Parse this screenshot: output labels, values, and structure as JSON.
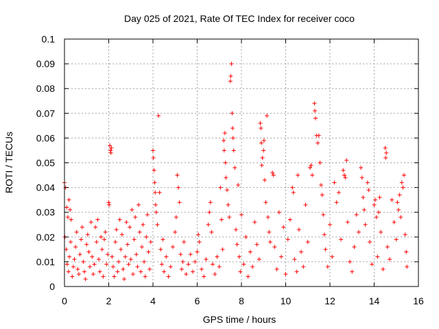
{
  "chart_data": {
    "type": "scatter",
    "title": "Day 025 of 2021, Rate Of TEC Index for receiver coco",
    "xlabel": "GPS time / hours",
    "ylabel": "ROTI / TECUs",
    "xlim": [
      0,
      16
    ],
    "ylim": [
      0,
      0.1
    ],
    "xticks": [
      0,
      2,
      4,
      6,
      8,
      10,
      12,
      14,
      16
    ],
    "xtick_labels": [
      "0",
      "2",
      "4",
      "6",
      "8",
      "10",
      "12",
      "14",
      "16"
    ],
    "yticks": [
      0,
      0.01,
      0.02,
      0.03,
      0.04,
      0.05,
      0.06,
      0.07,
      0.08,
      0.09,
      0.1
    ],
    "ytick_labels": [
      "0",
      "0.01",
      "0.02",
      "0.03",
      "0.04",
      "0.05",
      "0.06",
      "0.07",
      "0.08",
      "0.09",
      "0.1"
    ],
    "grid": true,
    "marker": "+",
    "marker_color": "#ff0000",
    "series": [
      {
        "name": "ROTI",
        "points": [
          [
            0.0,
            0.042
          ],
          [
            0.05,
            0.04
          ],
          [
            0.1,
            0.032
          ],
          [
            0.15,
            0.028
          ],
          [
            0.2,
            0.035
          ],
          [
            0.25,
            0.031
          ],
          [
            0.3,
            0.027
          ],
          [
            0.02,
            0.02
          ],
          [
            0.08,
            0.015
          ],
          [
            0.12,
            0.009
          ],
          [
            0.18,
            0.006
          ],
          [
            0.22,
            0.012
          ],
          [
            0.28,
            0.018
          ],
          [
            0.35,
            0.004
          ],
          [
            0.4,
            0.008
          ],
          [
            0.45,
            0.011
          ],
          [
            0.5,
            0.016
          ],
          [
            0.55,
            0.022
          ],
          [
            0.6,
            0.007
          ],
          [
            0.65,
            0.005
          ],
          [
            0.7,
            0.013
          ],
          [
            0.75,
            0.019
          ],
          [
            0.8,
            0.024
          ],
          [
            0.85,
            0.01
          ],
          [
            0.9,
            0.006
          ],
          [
            0.95,
            0.003
          ],
          [
            1.0,
            0.017
          ],
          [
            1.05,
            0.021
          ],
          [
            1.1,
            0.014
          ],
          [
            1.15,
            0.008
          ],
          [
            1.2,
            0.026
          ],
          [
            1.25,
            0.012
          ],
          [
            1.3,
            0.005
          ],
          [
            1.35,
            0.009
          ],
          [
            1.4,
            0.024
          ],
          [
            1.45,
            0.018
          ],
          [
            1.5,
            0.027
          ],
          [
            1.55,
            0.011
          ],
          [
            1.6,
            0.006
          ],
          [
            1.65,
            0.02
          ],
          [
            1.7,
            0.015
          ],
          [
            1.75,
            0.004
          ],
          [
            1.8,
            0.019
          ],
          [
            1.85,
            0.022
          ],
          [
            1.9,
            0.009
          ],
          [
            1.95,
            0.013
          ],
          [
            2.0,
            0.034
          ],
          [
            2.02,
            0.033
          ],
          [
            2.05,
            0.057
          ],
          [
            2.08,
            0.055
          ],
          [
            2.1,
            0.054
          ],
          [
            2.12,
            0.056
          ],
          [
            2.15,
            0.012
          ],
          [
            2.2,
            0.008
          ],
          [
            2.25,
            0.004
          ],
          [
            2.3,
            0.018
          ],
          [
            2.35,
            0.023
          ],
          [
            2.4,
            0.006
          ],
          [
            2.45,
            0.01
          ],
          [
            2.5,
            0.027
          ],
          [
            2.55,
            0.015
          ],
          [
            2.6,
            0.021
          ],
          [
            2.65,
            0.007
          ],
          [
            2.7,
            0.003
          ],
          [
            2.75,
            0.012
          ],
          [
            2.8,
            0.026
          ],
          [
            2.85,
            0.017
          ],
          [
            2.9,
            0.009
          ],
          [
            2.95,
            0.024
          ],
          [
            3.0,
            0.011
          ],
          [
            3.05,
            0.031
          ],
          [
            3.1,
            0.005
          ],
          [
            3.15,
            0.019
          ],
          [
            3.2,
            0.028
          ],
          [
            3.25,
            0.013
          ],
          [
            3.3,
            0.008
          ],
          [
            3.35,
            0.033
          ],
          [
            3.4,
            0.022
          ],
          [
            3.45,
            0.006
          ],
          [
            3.5,
            0.016
          ],
          [
            3.55,
            0.025
          ],
          [
            3.6,
            0.01
          ],
          [
            3.65,
            0.004
          ],
          [
            3.7,
            0.02
          ],
          [
            3.75,
            0.029
          ],
          [
            3.8,
            0.014
          ],
          [
            3.85,
            0.007
          ],
          [
            3.9,
            0.018
          ],
          [
            4.0,
            0.055
          ],
          [
            4.02,
            0.052
          ],
          [
            4.05,
            0.047
          ],
          [
            4.08,
            0.042
          ],
          [
            4.1,
            0.038
          ],
          [
            4.12,
            0.033
          ],
          [
            4.15,
            0.03
          ],
          [
            4.2,
            0.025
          ],
          [
            4.25,
            0.069
          ],
          [
            4.3,
            0.038
          ],
          [
            4.35,
            0.015
          ],
          [
            4.4,
            0.009
          ],
          [
            4.45,
            0.019
          ],
          [
            4.5,
            0.006
          ],
          [
            4.6,
            0.012
          ],
          [
            4.7,
            0.004
          ],
          [
            4.8,
            0.008
          ],
          [
            4.9,
            0.016
          ],
          [
            5.0,
            0.022
          ],
          [
            5.05,
            0.028
          ],
          [
            5.1,
            0.045
          ],
          [
            5.15,
            0.04
          ],
          [
            5.2,
            0.034
          ],
          [
            5.25,
            0.013
          ],
          [
            5.3,
            0.007
          ],
          [
            5.35,
            0.01
          ],
          [
            5.4,
            0.018
          ],
          [
            5.5,
            0.005
          ],
          [
            5.6,
            0.009
          ],
          [
            5.7,
            0.013
          ],
          [
            5.8,
            0.006
          ],
          [
            5.9,
            0.01
          ],
          [
            6.0,
            0.014
          ],
          [
            6.05,
            0.021
          ],
          [
            6.1,
            0.018
          ],
          [
            6.2,
            0.007
          ],
          [
            6.3,
            0.004
          ],
          [
            6.4,
            0.011
          ],
          [
            6.5,
            0.025
          ],
          [
            6.55,
            0.03
          ],
          [
            6.6,
            0.034
          ],
          [
            6.65,
            0.022
          ],
          [
            6.7,
            0.009
          ],
          [
            6.8,
            0.005
          ],
          [
            6.9,
            0.012
          ],
          [
            7.0,
            0.008
          ],
          [
            7.05,
            0.04
          ],
          [
            7.1,
            0.027
          ],
          [
            7.15,
            0.015
          ],
          [
            7.2,
            0.059
          ],
          [
            7.22,
            0.055
          ],
          [
            7.25,
            0.062
          ],
          [
            7.28,
            0.05
          ],
          [
            7.3,
            0.044
          ],
          [
            7.35,
            0.039
          ],
          [
            7.4,
            0.033
          ],
          [
            7.45,
            0.028
          ],
          [
            7.5,
            0.083
          ],
          [
            7.52,
            0.085
          ],
          [
            7.55,
            0.09
          ],
          [
            7.58,
            0.07
          ],
          [
            7.6,
            0.064
          ],
          [
            7.62,
            0.06
          ],
          [
            7.65,
            0.055
          ],
          [
            7.7,
            0.048
          ],
          [
            7.75,
            0.023
          ],
          [
            7.8,
            0.017
          ],
          [
            7.85,
            0.041
          ],
          [
            7.9,
            0.012
          ],
          [
            7.95,
            0.006
          ],
          [
            8.0,
            0.029
          ],
          [
            8.1,
            0.009
          ],
          [
            8.2,
            0.02
          ],
          [
            8.3,
            0.004
          ],
          [
            8.4,
            0.014
          ],
          [
            8.5,
            0.008
          ],
          [
            8.6,
            0.026
          ],
          [
            8.7,
            0.017
          ],
          [
            8.8,
            0.011
          ],
          [
            8.85,
            0.066
          ],
          [
            8.88,
            0.064
          ],
          [
            8.9,
            0.058
          ],
          [
            8.92,
            0.049
          ],
          [
            8.95,
            0.052
          ],
          [
            9.0,
            0.055
          ],
          [
            9.02,
            0.059
          ],
          [
            9.05,
            0.043
          ],
          [
            9.1,
            0.034
          ],
          [
            9.15,
            0.069
          ],
          [
            9.2,
            0.028
          ],
          [
            9.25,
            0.022
          ],
          [
            9.3,
            0.018
          ],
          [
            9.4,
            0.046
          ],
          [
            9.45,
            0.045
          ],
          [
            9.5,
            0.016
          ],
          [
            9.6,
            0.007
          ],
          [
            9.7,
            0.03
          ],
          [
            9.8,
            0.012
          ],
          [
            9.9,
            0.024
          ],
          [
            10.0,
            0.005
          ],
          [
            10.1,
            0.019
          ],
          [
            10.2,
            0.027
          ],
          [
            10.3,
            0.04
          ],
          [
            10.35,
            0.038
          ],
          [
            10.4,
            0.011
          ],
          [
            10.5,
            0.006
          ],
          [
            10.55,
            0.045
          ],
          [
            10.6,
            0.023
          ],
          [
            10.7,
            0.014
          ],
          [
            10.8,
            0.008
          ],
          [
            10.9,
            0.033
          ],
          [
            11.0,
            0.018
          ],
          [
            11.1,
            0.048
          ],
          [
            11.15,
            0.049
          ],
          [
            11.2,
            0.045
          ],
          [
            11.3,
            0.074
          ],
          [
            11.32,
            0.071
          ],
          [
            11.35,
            0.068
          ],
          [
            11.4,
            0.061
          ],
          [
            11.45,
            0.058
          ],
          [
            11.5,
            0.061
          ],
          [
            11.55,
            0.05
          ],
          [
            11.6,
            0.041
          ],
          [
            11.65,
            0.037
          ],
          [
            11.7,
            0.029
          ],
          [
            11.75,
            0.021
          ],
          [
            11.8,
            0.015
          ],
          [
            11.9,
            0.008
          ],
          [
            12.0,
            0.025
          ],
          [
            12.1,
            0.012
          ],
          [
            12.2,
            0.042
          ],
          [
            12.3,
            0.034
          ],
          [
            12.4,
            0.038
          ],
          [
            12.5,
            0.019
          ],
          [
            12.6,
            0.047
          ],
          [
            12.65,
            0.045
          ],
          [
            12.7,
            0.044
          ],
          [
            12.75,
            0.051
          ],
          [
            12.8,
            0.026
          ],
          [
            12.9,
            0.01
          ],
          [
            13.0,
            0.006
          ],
          [
            13.1,
            0.016
          ],
          [
            13.2,
            0.029
          ],
          [
            13.3,
            0.022
          ],
          [
            13.4,
            0.048
          ],
          [
            13.45,
            0.044
          ],
          [
            13.5,
            0.036
          ],
          [
            13.55,
            0.031
          ],
          [
            13.6,
            0.025
          ],
          [
            13.7,
            0.042
          ],
          [
            13.75,
            0.039
          ],
          [
            13.8,
            0.018
          ],
          [
            13.9,
            0.009
          ],
          [
            14.0,
            0.033
          ],
          [
            14.05,
            0.035
          ],
          [
            14.1,
            0.028
          ],
          [
            14.15,
            0.012
          ],
          [
            14.2,
            0.03
          ],
          [
            14.25,
            0.036
          ],
          [
            14.3,
            0.022
          ],
          [
            14.4,
            0.007
          ],
          [
            14.5,
            0.056
          ],
          [
            14.52,
            0.052
          ],
          [
            14.55,
            0.054
          ],
          [
            14.6,
            0.016
          ],
          [
            14.7,
            0.011
          ],
          [
            14.8,
            0.035
          ],
          [
            14.9,
            0.026
          ],
          [
            15.0,
            0.019
          ],
          [
            15.05,
            0.034
          ],
          [
            15.1,
            0.031
          ],
          [
            15.15,
            0.037
          ],
          [
            15.2,
            0.028
          ],
          [
            15.25,
            0.042
          ],
          [
            15.3,
            0.04
          ],
          [
            15.35,
            0.045
          ],
          [
            15.4,
            0.021
          ],
          [
            15.45,
            0.014
          ],
          [
            15.48,
            0.008
          ]
        ]
      }
    ]
  }
}
